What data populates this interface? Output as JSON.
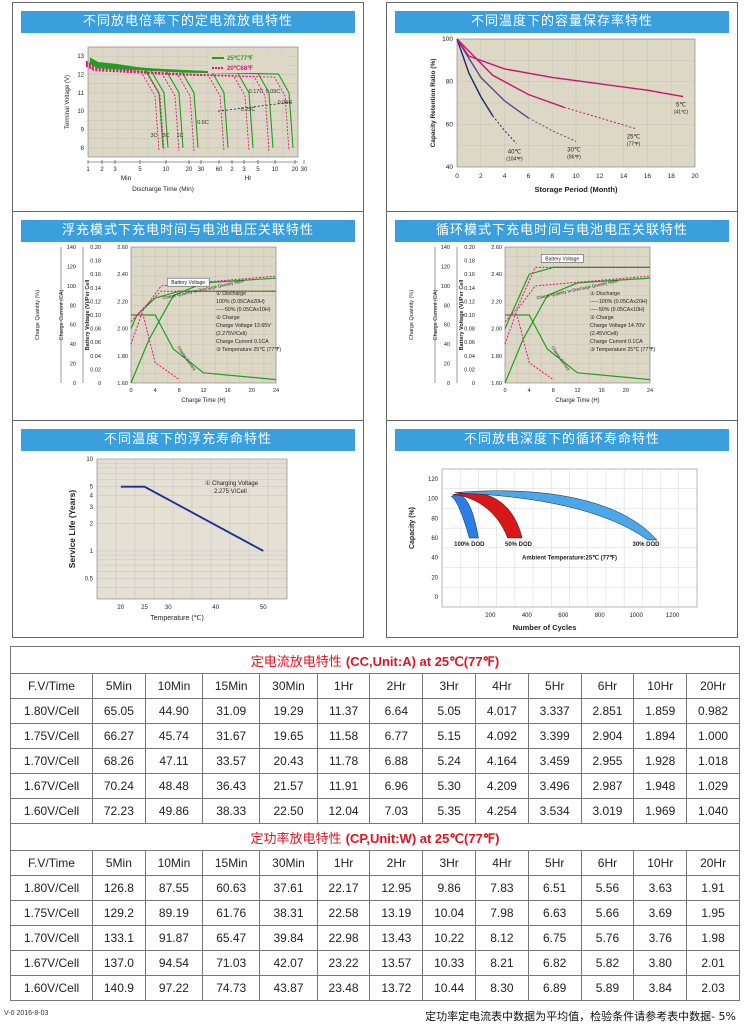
{
  "chart_data": [
    {
      "type": "line",
      "title": "不同放电倍率下的定电流放电特性",
      "xlabel": "Discharge Time (Min)",
      "ylabel": "Terminal Voltage (V)",
      "x_ticks_min": [
        "1",
        "2",
        "3",
        "5",
        "10",
        "20",
        "30",
        "60"
      ],
      "x_ticks_hr": [
        "2",
        "3",
        "5",
        "10",
        "20",
        "30"
      ],
      "x_unit_min": "Min",
      "x_unit_hr": "Hr",
      "y_ticks": [
        "8",
        "9",
        "10",
        "11",
        "12",
        "13"
      ],
      "ylim": [
        7.5,
        13.5
      ],
      "legend": [
        "25℃77℉",
        "20℃68℉"
      ],
      "legend_colors": [
        "#1ea01e",
        "#e0157a"
      ],
      "rate_labels": [
        "3C",
        "2C",
        "1C",
        "0.6C",
        "0.25C",
        "0.17C",
        "0.09C",
        "0.05C"
      ]
    },
    {
      "type": "line",
      "title": "不同温度下的容量保存率特性",
      "xlabel": "Storage Period (Month)",
      "ylabel": "Capacity Retention Ratio (%)",
      "x_ticks": [
        "0",
        "2",
        "4",
        "6",
        "8",
        "10",
        "12",
        "14",
        "16",
        "18",
        "20"
      ],
      "y_ticks": [
        "40",
        "60",
        "80",
        "100"
      ],
      "xlim": [
        0,
        20
      ],
      "ylim": [
        40,
        100
      ],
      "series": [
        {
          "name": "40℃",
          "sub": "(104℉)",
          "x": [
            0,
            1,
            2,
            3,
            4,
            5
          ],
          "y": [
            100,
            84,
            73,
            64,
            57,
            51
          ]
        },
        {
          "name": "30℃",
          "sub": "(86℉)",
          "x": [
            0,
            2,
            4,
            6,
            8,
            10
          ],
          "y": [
            100,
            82,
            71,
            63,
            57,
            52
          ]
        },
        {
          "name": "25℃",
          "sub": "(77℉)",
          "x": [
            0,
            3,
            6,
            9,
            12,
            15
          ],
          "y": [
            100,
            83,
            74,
            68,
            63,
            58
          ]
        },
        {
          "name": "5℃",
          "sub": "(41℃)",
          "x": [
            0,
            1,
            4,
            8,
            12,
            16,
            19
          ],
          "y": [
            100,
            92,
            86,
            82,
            79,
            76,
            73
          ]
        }
      ]
    },
    {
      "type": "line",
      "title": "浮充模式下充电时间与电池电压关联特性",
      "xlabel": "Charge Time (H)",
      "y1label": "Charge Quantity (%)",
      "y2label": "Charge Current (CA)",
      "y3label": "Battery Voltage (V)/Per Cell",
      "x_ticks": [
        "0",
        "4",
        "8",
        "12",
        "16",
        "20",
        "24"
      ],
      "y1_ticks": [
        "0",
        "20",
        "40",
        "60",
        "80",
        "100",
        "120",
        "140"
      ],
      "y2_ticks": [
        "0",
        "0.02",
        "0.04",
        "0.06",
        "0.08",
        "0.10",
        "0.12",
        "0.14",
        "0.16",
        "0.18",
        "0.20"
      ],
      "y3_ticks": [
        "1.60",
        "1.80",
        "2.00",
        "2.20",
        "2.40",
        "2.60"
      ],
      "curve_labels": [
        "Battery Voltage",
        "Charge Quantity to-Discharge Quantity Ratio",
        "Charge Current"
      ],
      "notes": [
        "① Discharge",
        "100% (0.05CAx20H)",
        "-----50% (0.05CAx10H)",
        "② Charge",
        "Charge Voltage 13.65V",
        "(2.275V/Cell)",
        "Charge Current 0.1CA",
        "③ Temperature 25℃ (77℉)"
      ]
    },
    {
      "type": "line",
      "title": "循环模式下充电时间与电池电压关联特性",
      "xlabel": "Charge Time (H)",
      "y1label": "Charge Quantity (%)",
      "y2label": "Charge Current (CA)",
      "y3label": "Battery Voltage (V)/Per Cell",
      "x_ticks": [
        "0",
        "4",
        "8",
        "12",
        "16",
        "20",
        "24"
      ],
      "y1_ticks": [
        "0",
        "20",
        "40",
        "60",
        "80",
        "100",
        "120",
        "140"
      ],
      "y2_ticks": [
        "0",
        "0.02",
        "0.04",
        "0.06",
        "0.08",
        "0.10",
        "0.12",
        "0.14",
        "0.16",
        "0.18",
        "0.20"
      ],
      "y3_ticks": [
        "1.60",
        "1.80",
        "2.00",
        "2.20",
        "2.40",
        "2.60"
      ],
      "curve_labels": [
        "Battery Voltage",
        "Charge Quantity to-Discharge Quantity Ratio",
        "Charge Current"
      ],
      "notes": [
        "① Discharge",
        "-----100% (0.05CAx20H)",
        "-----50% (0.05CAx10H)",
        "② Charge",
        "Charge Voltage 14.70V",
        "(2.45V/Cell)",
        "Charge Current 0.1CA",
        "③ Temperature 25℃ (77℉)"
      ]
    },
    {
      "type": "line",
      "title": "不同温度下的浮充寿命特性",
      "xlabel": "Temperature (℃)",
      "ylabel": "Service Life (Years)",
      "x_ticks": [
        "20",
        "25",
        "30",
        "40",
        "50"
      ],
      "y_ticks": [
        "10",
        "5",
        "4",
        "3",
        "2",
        "1",
        "0.5"
      ],
      "series": [
        {
          "name": "Service Life",
          "x": [
            20,
            25,
            50
          ],
          "y": [
            5,
            5,
            1
          ]
        }
      ],
      "annotation": [
        "① Charging Voltage",
        "2.275 V/Cell"
      ]
    },
    {
      "type": "area",
      "title": "不同放电深度下的循环寿命特性",
      "xlabel": "Number of Cycles",
      "ylabel": "Capacity (%)",
      "x_ticks": [
        "200",
        "400",
        "600",
        "800",
        "1000",
        "1200"
      ],
      "y_ticks": [
        "0",
        "20",
        "40",
        "60",
        "80",
        "100",
        "120"
      ],
      "dod_labels": [
        "100% DOD",
        "50% DOD",
        "30% DOD"
      ],
      "dod_colors": [
        "#2a7ee8",
        "#d81818",
        "#4aa7ea"
      ],
      "ambient": "Ambient Temperature:25℃ (77℉)"
    },
    {
      "type": "table",
      "title": "定电流放电特性",
      "title_unit": "(CC,Unit:A)",
      "title_temp": "at 25℃(77℉)",
      "columns": [
        "F.V/Time",
        "5Min",
        "10Min",
        "15Min",
        "30Min",
        "1Hr",
        "2Hr",
        "3Hr",
        "4Hr",
        "5Hr",
        "6Hr",
        "10Hr",
        "20Hr"
      ],
      "rows": [
        [
          "1.80V/Cell",
          "65.05",
          "44.90",
          "31.09",
          "19.29",
          "11.37",
          "6.64",
          "5.05",
          "4.017",
          "3.337",
          "2.851",
          "1.859",
          "0.982"
        ],
        [
          "1.75V/Cell",
          "66.27",
          "45.74",
          "31.67",
          "19.65",
          "11.58",
          "6.77",
          "5.15",
          "4.092",
          "3.399",
          "2.904",
          "1.894",
          "1.000"
        ],
        [
          "1.70V/Cell",
          "68.26",
          "47.11",
          "33.57",
          "20.43",
          "11.78",
          "6.88",
          "5.24",
          "4.164",
          "3.459",
          "2.955",
          "1.928",
          "1.018"
        ],
        [
          "1.67V/Cell",
          "70.24",
          "48.48",
          "36.43",
          "21.57",
          "11.91",
          "6.96",
          "5.30",
          "4.209",
          "3.496",
          "2.987",
          "1.948",
          "1.029"
        ],
        [
          "1.60V/Cell",
          "72.23",
          "49.86",
          "38.33",
          "22.50",
          "12.04",
          "7.03",
          "5.35",
          "4.254",
          "3.534",
          "3.019",
          "1.969",
          "1.040"
        ]
      ]
    },
    {
      "type": "table",
      "title": "定功率放电特性",
      "title_unit": "(CP,Unit:W)",
      "title_temp": "at 25℃(77℉)",
      "columns": [
        "F.V/Time",
        "5Min",
        "10Min",
        "15Min",
        "30Min",
        "1Hr",
        "2Hr",
        "3Hr",
        "4Hr",
        "5Hr",
        "6Hr",
        "10Hr",
        "20Hr"
      ],
      "rows": [
        [
          "1.80V/Cell",
          "126.8",
          "87.55",
          "60.63",
          "37.61",
          "22.17",
          "12.95",
          "9.86",
          "7.83",
          "6.51",
          "5.56",
          "3.63",
          "1.91"
        ],
        [
          "1.75V/Cell",
          "129.2",
          "89.19",
          "61.76",
          "38.31",
          "22.58",
          "13.19",
          "10.04",
          "7.98",
          "6.63",
          "5.66",
          "3.69",
          "1.95"
        ],
        [
          "1.70V/Cell",
          "133.1",
          "91.87",
          "65.47",
          "39.84",
          "22.98",
          "13.43",
          "10.22",
          "8.12",
          "6.75",
          "5.76",
          "3.76",
          "1.98"
        ],
        [
          "1.67V/Cell",
          "137.0",
          "94.54",
          "71.03",
          "42.07",
          "23.22",
          "13.57",
          "10.33",
          "8.21",
          "6.82",
          "5.82",
          "3.80",
          "2.01"
        ],
        [
          "1.60V/Cell",
          "140.9",
          "97.22",
          "74.73",
          "43.87",
          "23.48",
          "13.72",
          "10.44",
          "8.30",
          "6.89",
          "5.89",
          "3.84",
          "2.03"
        ]
      ]
    }
  ],
  "footer": {
    "version": "V-0 2016-8-03",
    "note": "定功率定电流表中数据为平均值，检验条件请参考表中数据- 5%"
  }
}
